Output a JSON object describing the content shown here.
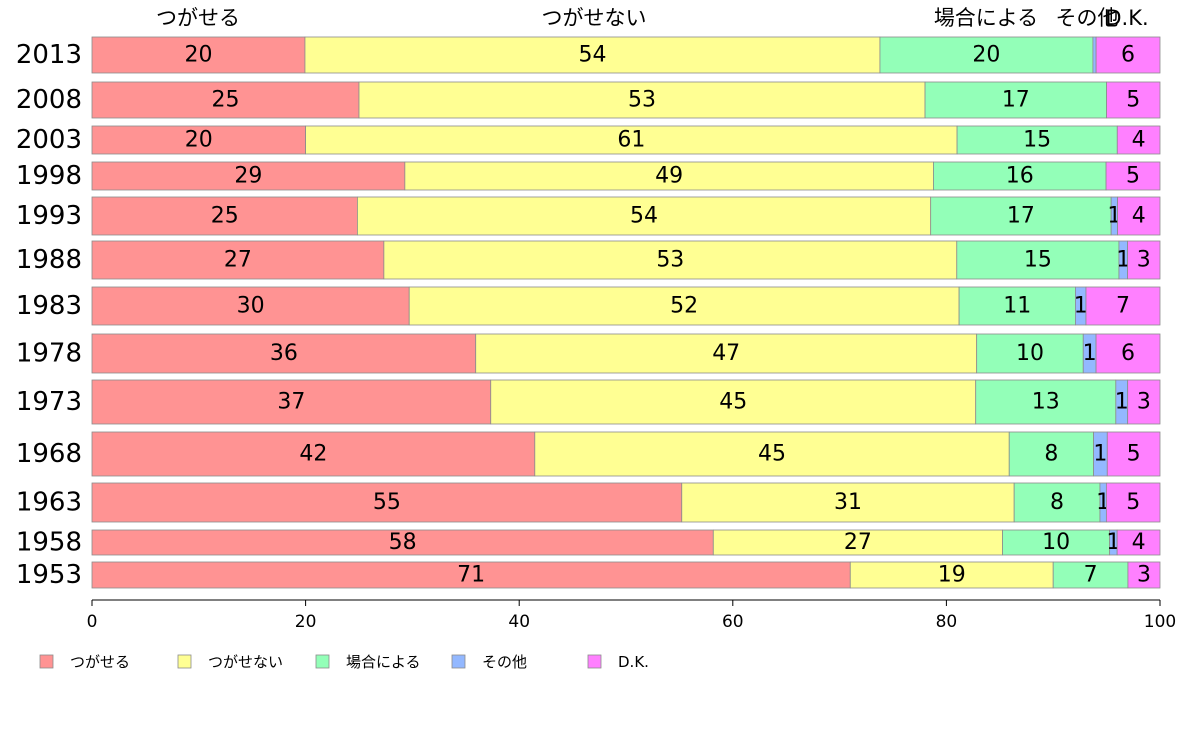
{
  "chart_data": {
    "type": "bar",
    "orientation": "horizontal",
    "stacked": true,
    "categories": [
      "2013",
      "2008",
      "2003",
      "1998",
      "1993",
      "1988",
      "1983",
      "1978",
      "1973",
      "1968",
      "1963",
      "1958",
      "1953"
    ],
    "series": [
      {
        "name": "つがせる",
        "color": "#ff9393",
        "values": [
          20,
          25,
          20,
          29,
          25,
          27,
          30,
          36,
          37,
          42,
          55,
          58,
          71
        ]
      },
      {
        "name": "つがせない",
        "color": "#ffff93",
        "values": [
          54,
          53,
          61,
          49,
          54,
          53,
          52,
          47,
          45,
          45,
          31,
          27,
          19
        ]
      },
      {
        "name": "場合による",
        "color": "#93ffb8",
        "values": [
          20,
          17,
          15,
          16,
          17,
          15,
          11,
          10,
          13,
          8,
          8,
          10,
          7
        ]
      },
      {
        "name": "その他",
        "color": "#93b8ff",
        "values": [
          0.3,
          0,
          0,
          0,
          0.6,
          0.8,
          1,
          1.2,
          1.1,
          1.3,
          0.6,
          0.7,
          0
        ]
      },
      {
        "name": "D.K.",
        "color": "#ff80ff",
        "values": [
          6,
          5,
          4,
          5,
          4,
          3,
          7,
          6,
          3,
          5,
          5,
          4,
          3
        ]
      }
    ],
    "data_labels": [
      [
        "20",
        "54",
        "20",
        "",
        "6"
      ],
      [
        "25",
        "53",
        "17",
        "",
        "5"
      ],
      [
        "20",
        "61",
        "15",
        "",
        "4"
      ],
      [
        "29",
        "49",
        "16",
        "",
        "5"
      ],
      [
        "25",
        "54",
        "17",
        "1",
        "4"
      ],
      [
        "27",
        "53",
        "15",
        "1",
        "3"
      ],
      [
        "30",
        "52",
        "11",
        "1",
        "7"
      ],
      [
        "36",
        "47",
        "10",
        "1",
        "6"
      ],
      [
        "37",
        "45",
        "13",
        "1",
        "3"
      ],
      [
        "42",
        "45",
        "8",
        "1",
        "5"
      ],
      [
        "55",
        "31",
        "8",
        "1",
        "5"
      ],
      [
        "58",
        "27",
        "10",
        "1",
        "4"
      ],
      [
        "71",
        "19",
        "7",
        "",
        "3"
      ]
    ],
    "top_labels": [
      "つがせる",
      "つがせない",
      "場合による",
      "その他",
      "D.K."
    ],
    "xlim": [
      0,
      100
    ],
    "xticks": [
      "0",
      "20",
      "40",
      "60",
      "80",
      "100"
    ],
    "legend_position": "bottom-left",
    "grid": false
  }
}
